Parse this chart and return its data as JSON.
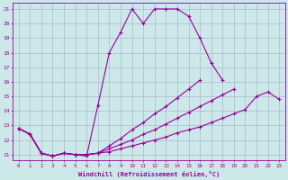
{
  "xlabel": "Windchill (Refroidissement éolien,°C)",
  "bg_color": "#cce8e8",
  "grid_color": "#aaaacc",
  "line_color": "#990099",
  "xlim": [
    -0.5,
    23.5
  ],
  "ylim": [
    10.6,
    21.4
  ],
  "yticks": [
    11,
    12,
    13,
    14,
    15,
    16,
    17,
    18,
    19,
    20,
    21
  ],
  "xticks": [
    0,
    1,
    2,
    3,
    4,
    5,
    6,
    7,
    8,
    9,
    10,
    11,
    12,
    13,
    14,
    15,
    16,
    17,
    18,
    19,
    20,
    21,
    22,
    23
  ],
  "line1_x": [
    0,
    1,
    2,
    3,
    4,
    5,
    6,
    7,
    8,
    9,
    10,
    11,
    12,
    13,
    14,
    15,
    16,
    17,
    18
  ],
  "line1_y": [
    12.8,
    12.4,
    11.1,
    10.9,
    11.1,
    11.0,
    10.9,
    14.4,
    18.0,
    19.4,
    21.0,
    20.0,
    21.0,
    21.0,
    21.0,
    20.5,
    19.0,
    17.3,
    16.1
  ],
  "line2_x": [
    0,
    1,
    2,
    3,
    4,
    5,
    6,
    7,
    8,
    9,
    10,
    11,
    12,
    13,
    14,
    15,
    16,
    17,
    18,
    19,
    20,
    21,
    22,
    23
  ],
  "line2_y": [
    12.8,
    12.4,
    11.1,
    10.9,
    11.1,
    11.0,
    11.0,
    11.1,
    11.2,
    11.4,
    11.6,
    11.8,
    12.0,
    12.2,
    12.5,
    12.7,
    12.9,
    13.2,
    13.5,
    13.8,
    14.1,
    15.0,
    15.3,
    14.8
  ],
  "line3_x": [
    0,
    1,
    2,
    3,
    4,
    5,
    6,
    7,
    8,
    9,
    10,
    11,
    12,
    13,
    14,
    15,
    16,
    17,
    18,
    19,
    20,
    21,
    22,
    23
  ],
  "line3_y": [
    12.8,
    12.4,
    11.1,
    10.9,
    11.1,
    11.0,
    11.0,
    11.1,
    11.4,
    11.7,
    12.0,
    12.4,
    12.7,
    13.1,
    13.5,
    13.9,
    14.3,
    14.7,
    15.1,
    15.5,
    null,
    null,
    null,
    null
  ],
  "line4_x": [
    0,
    1,
    2,
    3,
    4,
    5,
    6,
    7,
    8,
    9,
    10,
    11,
    12,
    13,
    14,
    15,
    16
  ],
  "line4_y": [
    12.8,
    12.4,
    11.1,
    10.9,
    11.1,
    11.0,
    11.0,
    11.1,
    11.6,
    12.1,
    12.7,
    13.2,
    13.8,
    14.3,
    14.9,
    15.5,
    16.1
  ]
}
